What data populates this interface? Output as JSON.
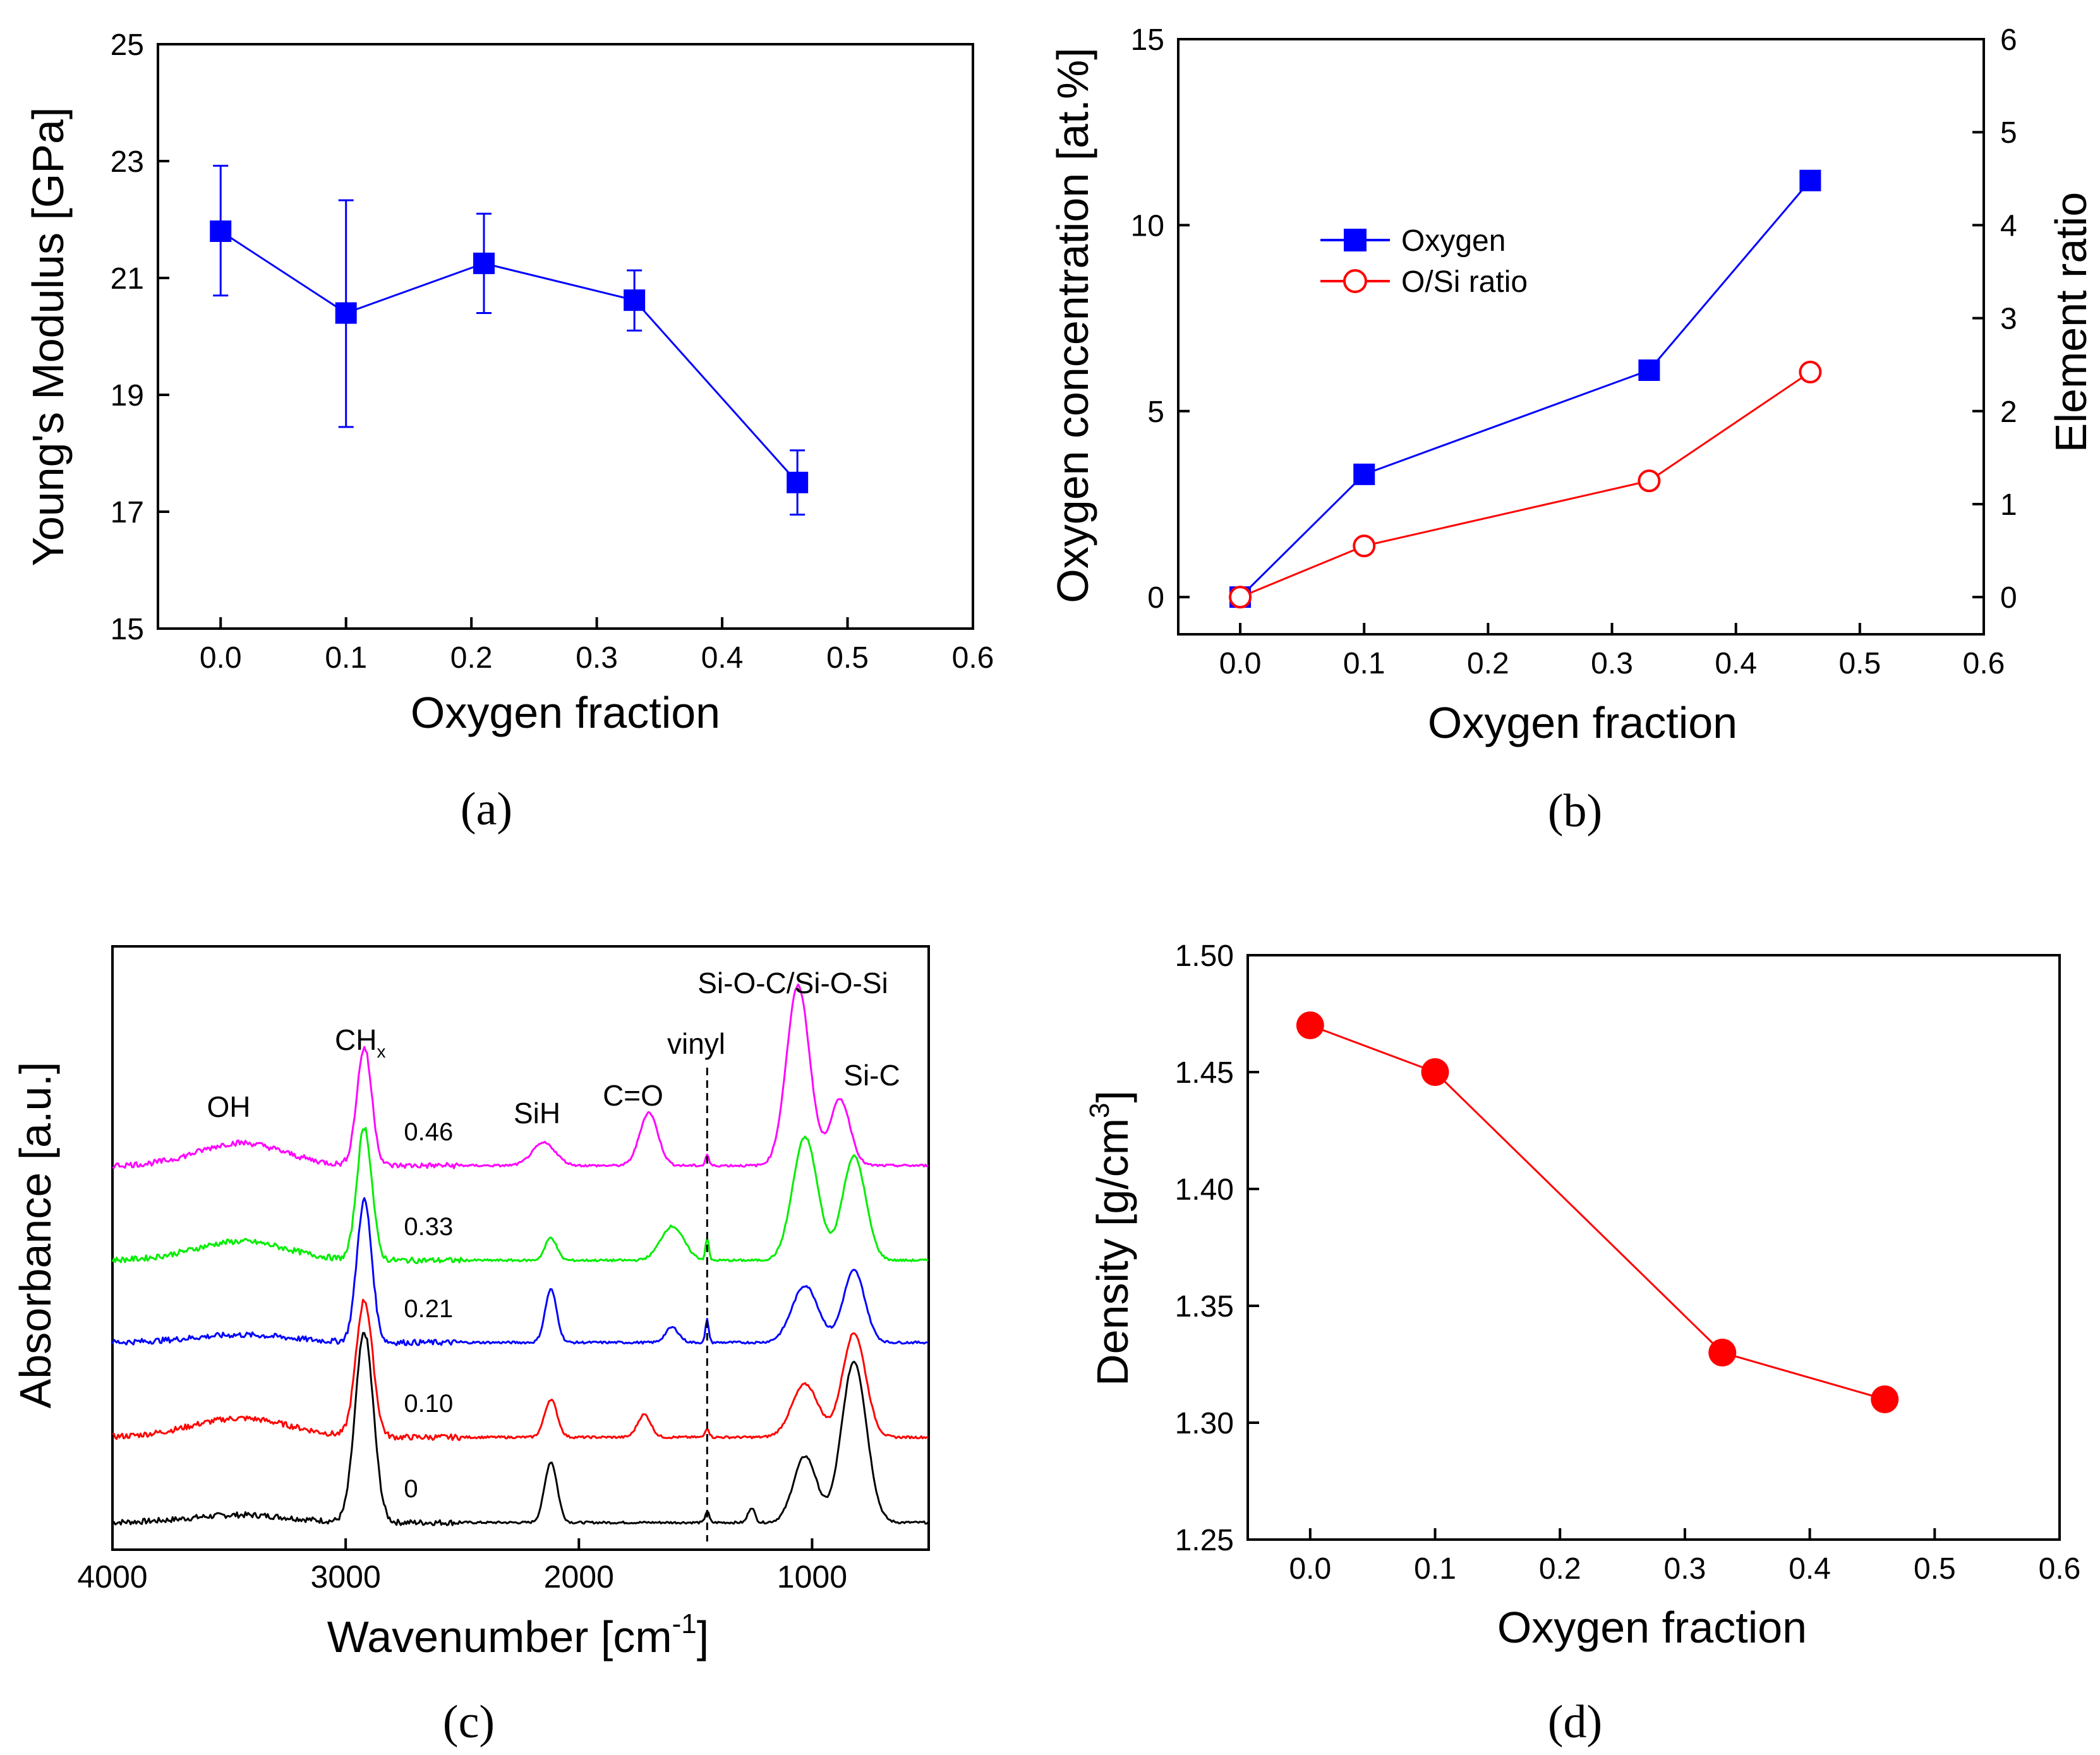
{
  "chart_data": [
    {
      "panel": "a",
      "type": "line",
      "caption": "(a)",
      "xlabel": "Oxygen fraction",
      "ylabel": "Young's Modulus [GPa]",
      "xlim": [
        -0.05,
        0.6
      ],
      "ylim": [
        15,
        25
      ],
      "xticks": [
        "0.0",
        "0.1",
        "0.2",
        "0.3",
        "0.4",
        "0.5",
        "0.6"
      ],
      "yticks": [
        "15",
        "17",
        "19",
        "21",
        "23",
        "25"
      ],
      "series": [
        {
          "name": "Young's Modulus",
          "color": "#0000ff",
          "marker": "square",
          "x": [
            0.0,
            0.1,
            0.21,
            0.33,
            0.46
          ],
          "y": [
            21.8,
            20.4,
            21.25,
            20.62,
            17.5
          ],
          "err_low": [
            20.7,
            18.45,
            20.4,
            20.1,
            16.95
          ],
          "err_high": [
            22.92,
            22.33,
            22.1,
            21.13,
            18.05
          ]
        }
      ]
    },
    {
      "panel": "b",
      "type": "line",
      "caption": "(b)",
      "xlabel": "Oxygen fraction",
      "ylabel": "Oxygen concentration [at.%]",
      "y2label": "Element ratio",
      "xlim": [
        -0.05,
        0.6
      ],
      "ylim": [
        -1,
        15
      ],
      "y2lim": [
        -0.4,
        6
      ],
      "xticks": [
        "0.0",
        "0.1",
        "0.2",
        "0.3",
        "0.4",
        "0.5",
        "0.6"
      ],
      "yticks": [
        "0",
        "5",
        "10",
        "15"
      ],
      "y2ticks": [
        "0",
        "1",
        "2",
        "3",
        "4",
        "5",
        "6"
      ],
      "legend": [
        "Oxygen",
        "O/Si ratio"
      ],
      "series": [
        {
          "name": "Oxygen",
          "axis": "left",
          "color": "#0000ff",
          "marker": "square",
          "x": [
            0.0,
            0.1,
            0.33,
            0.46
          ],
          "y": [
            0.0,
            3.3,
            6.1,
            11.2
          ]
        },
        {
          "name": "O/Si ratio",
          "axis": "right",
          "color": "#ff0000",
          "marker": "open-circle",
          "x": [
            0.0,
            0.1,
            0.33,
            0.46
          ],
          "y": [
            0.0,
            0.55,
            1.25,
            2.42
          ]
        }
      ]
    },
    {
      "panel": "c",
      "type": "line",
      "caption": "(c)",
      "xlabel": "Wavenumber [cm",
      "xlabel_sup": "-1",
      "xlabel_end": "]",
      "ylabel": "Absorbance [a.u.]",
      "xlim": [
        4000,
        500
      ],
      "xticks": [
        "4000",
        "3000",
        "2000",
        "1000"
      ],
      "peak_labels": [
        "OH",
        "CH",
        "SiH",
        "C=O",
        "vinyl",
        "Si-O-C/Si-O-Si",
        "Si-C"
      ],
      "chx_sub": "x",
      "vinyl_line": 1450,
      "series": [
        {
          "name": "0",
          "color": "#000000",
          "offset": 0,
          "peaks": [
            [
              2920,
              1.0,
              55
            ],
            [
              2120,
              0.32,
              38
            ],
            [
              1260,
              0.08,
              20
            ],
            [
              1030,
              0.35,
              70
            ],
            [
              820,
              0.85,
              75
            ],
            [
              3450,
              0.04,
              300
            ],
            [
              1450,
              0.06,
              12
            ]
          ]
        },
        {
          "name": "0.10",
          "color": "#ff0000",
          "offset": 1,
          "peaks": [
            [
              2920,
              0.72,
              50
            ],
            [
              2120,
              0.2,
              38
            ],
            [
              1720,
              0.12,
              40
            ],
            [
              1030,
              0.28,
              80
            ],
            [
              820,
              0.55,
              70
            ],
            [
              3450,
              0.1,
              300
            ],
            [
              1450,
              0.05,
              12
            ]
          ]
        },
        {
          "name": "0.21",
          "color": "#0000ff",
          "offset": 2,
          "peaks": [
            [
              2920,
              0.75,
              45
            ],
            [
              2120,
              0.28,
              35
            ],
            [
              1600,
              0.08,
              40
            ],
            [
              1030,
              0.3,
              80
            ],
            [
              820,
              0.38,
              65
            ],
            [
              3450,
              0.04,
              300
            ],
            [
              1450,
              0.12,
              10
            ]
          ]
        },
        {
          "name": "0.33",
          "color": "#00ee00",
          "offset": 3,
          "peaks": [
            [
              2920,
              0.7,
              45
            ],
            [
              2120,
              0.12,
              35
            ],
            [
              1600,
              0.18,
              70
            ],
            [
              1030,
              0.65,
              75
            ],
            [
              820,
              0.55,
              70
            ],
            [
              3450,
              0.1,
              280
            ],
            [
              1450,
              0.12,
              10
            ]
          ]
        },
        {
          "name": "0.46",
          "color": "#ff00ff",
          "offset": 4,
          "peaks": [
            [
              2920,
              0.62,
              45
            ],
            [
              2150,
              0.12,
              70
            ],
            [
              1700,
              0.28,
              55
            ],
            [
              1060,
              0.95,
              70
            ],
            [
              880,
              0.35,
              60
            ],
            [
              3450,
              0.12,
              260
            ],
            [
              1450,
              0.06,
              10
            ]
          ]
        }
      ]
    },
    {
      "panel": "d",
      "type": "line",
      "caption": "(d)",
      "xlabel": "Oxygen fraction",
      "ylabel": "Density [g/cm",
      "ylabel_sup": "3",
      "ylabel_end": "]",
      "xlim": [
        -0.05,
        0.6
      ],
      "ylim": [
        1.25,
        1.5
      ],
      "xticks": [
        "0.0",
        "0.1",
        "0.2",
        "0.3",
        "0.4",
        "0.5",
        "0.6"
      ],
      "yticks": [
        "1.25",
        "1.30",
        "1.35",
        "1.40",
        "1.45",
        "1.50"
      ],
      "series": [
        {
          "name": "Density",
          "color": "#ff0000",
          "marker": "filled-circle",
          "x": [
            0.0,
            0.1,
            0.33,
            0.46
          ],
          "y": [
            1.47,
            1.45,
            1.33,
            1.31
          ]
        }
      ]
    }
  ]
}
